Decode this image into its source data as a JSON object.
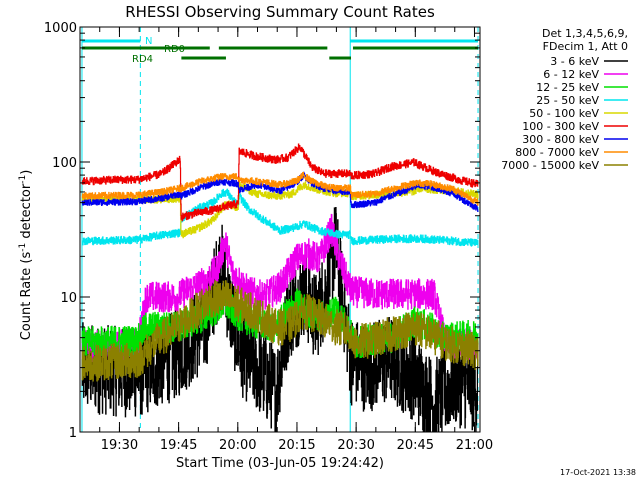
{
  "chart_data": {
    "type": "line",
    "title": "RHESSI Observing Summary Count Rates",
    "xlabel": "Start Time (03-Jun-05 19:24:42)",
    "ylabel_main": "Count Rate (s",
    "ylabel_sup1": "-1",
    "ylabel_mid": " detector",
    "ylabel_sup2": "-1",
    "ylabel_end": ")",
    "footer": "17-Oct-2021 13:38",
    "yscale": "log",
    "ylim": [
      1,
      1000
    ],
    "xlim_minutes": [
      -4.7,
      96.7
    ],
    "x_ticks": [
      {
        "label": "19:30",
        "m": 5.3
      },
      {
        "label": "19:45",
        "m": 20.3
      },
      {
        "label": "20:00",
        "m": 35.3
      },
      {
        "label": "20:15",
        "m": 50.3
      },
      {
        "label": "20:30",
        "m": 65.3
      },
      {
        "label": "20:45",
        "m": 80.3
      },
      {
        "label": "21:00",
        "m": 95.3
      }
    ],
    "y_ticks": [
      {
        "label": "1",
        "v": 1
      },
      {
        "label": "10",
        "v": 10
      },
      {
        "label": "100",
        "v": 100
      },
      {
        "label": "1000",
        "v": 1000
      }
    ],
    "legend_header": [
      "Det 1,3,4,5,6,9,",
      "FDecim 1, Att 0"
    ],
    "legend_position": "right",
    "night_boundaries_minutes": [
      -4.2,
      10.6,
      63.8,
      96.2
    ],
    "state_bars": [
      {
        "label": "N",
        "color": "#00e5ee",
        "segments": [
          [
            -4.2,
            10.6
          ],
          [
            63.8,
            96.2
          ]
        ]
      },
      {
        "label": "RD0",
        "color": "#007000",
        "segments": [
          [
            -4.2,
            28.2
          ],
          [
            30.5,
            58.0
          ],
          [
            64.5,
            96.2
          ]
        ]
      },
      {
        "label": "RD4",
        "color": "#007000",
        "segments": [
          [
            21.0,
            32.3
          ],
          [
            58.5,
            64.0
          ]
        ]
      }
    ],
    "time_breaks_minutes": [
      10.6,
      20.8,
      35.5,
      63.8,
      80.5
    ],
    "series": [
      {
        "name": "3 - 6 keV",
        "color": "#000000",
        "noise": 0.35,
        "points": [
          [
            -4.2,
            3.0
          ],
          [
            10,
            2.7
          ],
          [
            20,
            3.8
          ],
          [
            27,
            6
          ],
          [
            31,
            18
          ],
          [
            33,
            9
          ],
          [
            36,
            4
          ],
          [
            41,
            2.8
          ],
          [
            45,
            2
          ],
          [
            48,
            7
          ],
          [
            52,
            11
          ],
          [
            55,
            7
          ],
          [
            58,
            12
          ],
          [
            60,
            25
          ],
          [
            62,
            9
          ],
          [
            64,
            3.4
          ],
          [
            68,
            3
          ],
          [
            74,
            3.5
          ],
          [
            80,
            2.6
          ],
          [
            85,
            1.6
          ],
          [
            90,
            2.4
          ],
          [
            96.2,
            2.1
          ]
        ]
      },
      {
        "name": "6 - 12 keV",
        "color": "#ee00ee",
        "noise": 0.12,
        "points": [
          [
            -4.2,
            4.3
          ],
          [
            10,
            4.5
          ],
          [
            12,
            10
          ],
          [
            20,
            10
          ],
          [
            22,
            11
          ],
          [
            27,
            13
          ],
          [
            30,
            16
          ],
          [
            32,
            26
          ],
          [
            34,
            15
          ],
          [
            38,
            11
          ],
          [
            42,
            10
          ],
          [
            46,
            12
          ],
          [
            50,
            19
          ],
          [
            53,
            21
          ],
          [
            56,
            19
          ],
          [
            59,
            32
          ],
          [
            61,
            19
          ],
          [
            64,
            11
          ],
          [
            70,
            10.5
          ],
          [
            75,
            10.5
          ],
          [
            80,
            10.5
          ],
          [
            85,
            10.5
          ],
          [
            88,
            4.5
          ],
          [
            96.2,
            4.5
          ]
        ]
      },
      {
        "name": "12 - 25 keV",
        "color": "#00e000",
        "noise": 0.12,
        "points": [
          [
            -4.2,
            4.6
          ],
          [
            10,
            4.8
          ],
          [
            12,
            6
          ],
          [
            20,
            6
          ],
          [
            22,
            6.3
          ],
          [
            28,
            7.5
          ],
          [
            32,
            9
          ],
          [
            35,
            7.5
          ],
          [
            40,
            6.3
          ],
          [
            45,
            6
          ],
          [
            50,
            9
          ],
          [
            54,
            7.5
          ],
          [
            58,
            7
          ],
          [
            60,
            8.5
          ],
          [
            63,
            6
          ],
          [
            65,
            4.5
          ],
          [
            68,
            4.8
          ],
          [
            74,
            5
          ],
          [
            80,
            6.5
          ],
          [
            84,
            6
          ],
          [
            87,
            5
          ],
          [
            96.2,
            5.2
          ]
        ]
      },
      {
        "name": "25 - 50 keV",
        "color": "#00e5ee",
        "noise": 0.03,
        "points": [
          [
            -4.2,
            26
          ],
          [
            10,
            26.5
          ],
          [
            15,
            28.5
          ],
          [
            20.7,
            30
          ],
          [
            20.9,
            38
          ],
          [
            25,
            45
          ],
          [
            29,
            50
          ],
          [
            31,
            58
          ],
          [
            32.5,
            60
          ],
          [
            34,
            52
          ],
          [
            35.4,
            48
          ],
          [
            35.6,
            56
          ],
          [
            38,
            45
          ],
          [
            42,
            37
          ],
          [
            46,
            31
          ],
          [
            50,
            33
          ],
          [
            52,
            35
          ],
          [
            56,
            31
          ],
          [
            61,
            29
          ],
          [
            63.8,
            29
          ],
          [
            64,
            26
          ],
          [
            70,
            26.5
          ],
          [
            76,
            27
          ],
          [
            80,
            27
          ],
          [
            82,
            27
          ],
          [
            90,
            26
          ],
          [
            96.2,
            25
          ]
        ]
      },
      {
        "name": "50 - 100 keV",
        "color": "#d8d800",
        "noise": 0.03,
        "points": [
          [
            -4.2,
            53
          ],
          [
            10,
            53
          ],
          [
            16,
            53
          ],
          [
            20.7,
            54
          ],
          [
            20.9,
            29
          ],
          [
            25,
            32
          ],
          [
            29,
            37
          ],
          [
            31,
            45
          ],
          [
            32.5,
            49
          ],
          [
            35.4,
            46
          ],
          [
            35.6,
            68
          ],
          [
            40,
            58
          ],
          [
            45,
            56
          ],
          [
            49,
            58
          ],
          [
            52,
            68
          ],
          [
            56,
            62
          ],
          [
            60,
            59
          ],
          [
            63.8,
            59
          ],
          [
            64,
            56
          ],
          [
            70,
            57
          ],
          [
            76,
            59
          ],
          [
            80.4,
            61
          ],
          [
            80.6,
            64
          ],
          [
            84,
            63
          ],
          [
            90,
            61
          ],
          [
            96.2,
            57
          ]
        ]
      },
      {
        "name": "100 - 300 keV",
        "color": "#ee0000",
        "noise": 0.03,
        "points": [
          [
            -4.2,
            72
          ],
          [
            5,
            74
          ],
          [
            10,
            74
          ],
          [
            16,
            82
          ],
          [
            20.7,
            105
          ],
          [
            20.9,
            39
          ],
          [
            25,
            42
          ],
          [
            29,
            44
          ],
          [
            32,
            47
          ],
          [
            35.4,
            49
          ],
          [
            35.6,
            120
          ],
          [
            40,
            110
          ],
          [
            45,
            104
          ],
          [
            48,
            108
          ],
          [
            51,
            130
          ],
          [
            54,
            92
          ],
          [
            57,
            82
          ],
          [
            63.8,
            82
          ],
          [
            64,
            79
          ],
          [
            70,
            82
          ],
          [
            74,
            92
          ],
          [
            80.4,
            100
          ],
          [
            80.6,
            97
          ],
          [
            86,
            83
          ],
          [
            92,
            73
          ],
          [
            96.2,
            68
          ]
        ]
      },
      {
        "name": "300 - 800 keV",
        "color": "#0000ee",
        "noise": 0.025,
        "points": [
          [
            -4.2,
            50
          ],
          [
            10,
            51
          ],
          [
            16,
            54
          ],
          [
            20.7,
            58
          ],
          [
            20.9,
            56
          ],
          [
            26,
            65
          ],
          [
            31,
            72
          ],
          [
            35.4,
            69
          ],
          [
            35.6,
            62
          ],
          [
            40,
            68
          ],
          [
            46,
            61
          ],
          [
            50,
            70
          ],
          [
            52,
            80
          ],
          [
            54,
            70
          ],
          [
            58,
            62
          ],
          [
            63.8,
            60
          ],
          [
            64,
            48
          ],
          [
            70,
            50
          ],
          [
            74,
            56
          ],
          [
            80.4,
            66
          ],
          [
            80.6,
            67
          ],
          [
            84,
            66
          ],
          [
            90,
            58
          ],
          [
            96.2,
            45
          ]
        ]
      },
      {
        "name": "800 - 7000 keV",
        "color": "#ff8c00",
        "noise": 0.025,
        "points": [
          [
            -4.2,
            56
          ],
          [
            10,
            57
          ],
          [
            16,
            60
          ],
          [
            20.7,
            64
          ],
          [
            20.9,
            64
          ],
          [
            26,
            72
          ],
          [
            31,
            78
          ],
          [
            35.4,
            78
          ],
          [
            35.6,
            74
          ],
          [
            40,
            72
          ],
          [
            46,
            68
          ],
          [
            50,
            72
          ],
          [
            52,
            80
          ],
          [
            54,
            72
          ],
          [
            58,
            65
          ],
          [
            63.8,
            64
          ],
          [
            64,
            57
          ],
          [
            70,
            58
          ],
          [
            74,
            63
          ],
          [
            80.4,
            70
          ],
          [
            80.6,
            70
          ],
          [
            84,
            69
          ],
          [
            90,
            63
          ],
          [
            96.2,
            50
          ]
        ]
      },
      {
        "name": "7000 - 15000 keV",
        "color": "#8b8000",
        "noise": 0.14,
        "points": [
          [
            -4.2,
            3.2
          ],
          [
            10,
            3.4
          ],
          [
            14,
            4.5
          ],
          [
            20,
            6
          ],
          [
            24,
            7.5
          ],
          [
            28,
            9.5
          ],
          [
            32,
            10
          ],
          [
            35,
            9
          ],
          [
            40,
            7.5
          ],
          [
            45,
            6
          ],
          [
            48,
            6
          ],
          [
            52,
            8
          ],
          [
            56,
            7
          ],
          [
            60,
            6
          ],
          [
            63.8,
            5.5
          ],
          [
            64,
            4.6
          ],
          [
            70,
            4.8
          ],
          [
            76,
            5.5
          ],
          [
            80,
            6
          ],
          [
            84,
            5.3
          ],
          [
            88,
            4.6
          ],
          [
            96.2,
            3.9
          ]
        ]
      }
    ]
  }
}
